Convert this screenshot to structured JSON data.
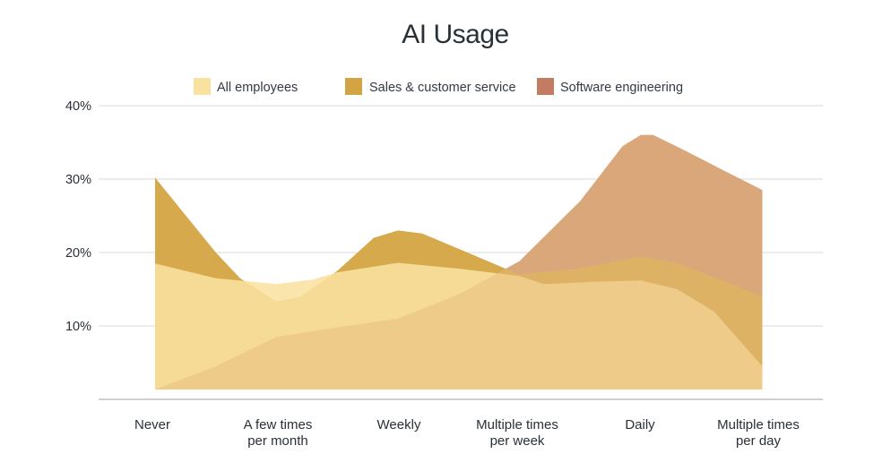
{
  "chart_data": {
    "type": "area",
    "title": "AI Usage",
    "categories": [
      [
        "Never"
      ],
      [
        "A few times",
        "per month"
      ],
      [
        "Weekly"
      ],
      [
        "Multiple times",
        "per week"
      ],
      [
        "Daily"
      ],
      [
        "Multiple times",
        "per day"
      ]
    ],
    "y_ticks": [
      "10%",
      "20%",
      "30%",
      "40%"
    ],
    "ylim": [
      0,
      40
    ],
    "series": [
      {
        "name": "All employees",
        "color": "#f9e1a0",
        "opacity": 0.88,
        "points": [
          [
            0,
            18.5
          ],
          [
            0.5,
            16.5
          ],
          [
            1,
            15.7
          ],
          [
            1.3,
            16.3
          ],
          [
            1.5,
            17.3
          ],
          [
            2,
            18.6
          ],
          [
            2.5,
            17.8
          ],
          [
            3,
            16.8
          ],
          [
            3.2,
            15.7
          ],
          [
            3.6,
            16.0
          ],
          [
            4,
            16.2
          ],
          [
            4.3,
            15.0
          ],
          [
            4.6,
            12.0
          ],
          [
            5,
            4.5
          ]
        ]
      },
      {
        "name": "Sales & customer service",
        "color": "#d3a442",
        "opacity": 0.95,
        "points": [
          [
            0,
            30.2
          ],
          [
            0.5,
            20.0
          ],
          [
            0.7,
            16.5
          ],
          [
            1,
            13.3
          ],
          [
            1.2,
            14.0
          ],
          [
            1.5,
            17.5
          ],
          [
            1.8,
            22.0
          ],
          [
            2,
            23.0
          ],
          [
            2.2,
            22.6
          ],
          [
            2.5,
            20.5
          ],
          [
            3,
            17.0
          ],
          [
            3.5,
            17.8
          ],
          [
            4,
            19.5
          ],
          [
            4.3,
            18.5
          ],
          [
            4.7,
            16.0
          ],
          [
            5,
            14.0
          ]
        ]
      },
      {
        "name": "Software engineering",
        "color": "#c27c63",
        "opacity": 0.9,
        "points": [
          [
            0,
            0.0
          ],
          [
            0.5,
            4.5
          ],
          [
            1,
            8.5
          ],
          [
            1.5,
            9.8
          ],
          [
            2,
            11.0
          ],
          [
            2.5,
            14.3
          ],
          [
            3,
            18.8
          ],
          [
            3.5,
            27.0
          ],
          [
            3.85,
            34.5
          ],
          [
            4,
            36.0
          ],
          [
            4.1,
            36.0
          ],
          [
            4.35,
            34.0
          ],
          [
            4.7,
            31.0
          ],
          [
            5,
            28.5
          ]
        ]
      }
    ],
    "base_fill": "#e7bf80",
    "legend_position": "top-center",
    "grid": true
  }
}
